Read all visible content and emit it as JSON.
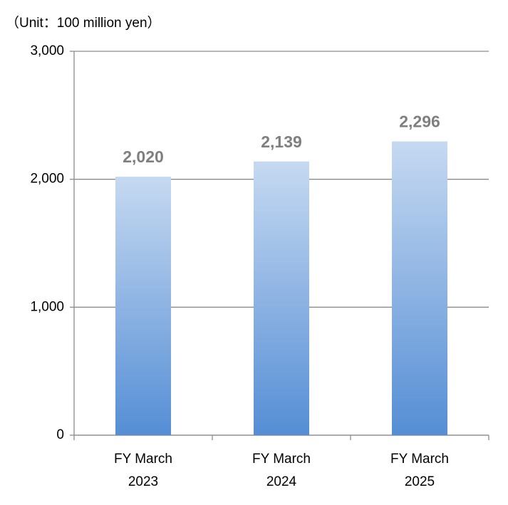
{
  "chart_data": {
    "type": "bar",
    "subtitle": "（Unit：100 million yen）",
    "categories": [
      "FY March 2023",
      "FY March 2024",
      "FY March 2025"
    ],
    "values": [
      2020,
      2139,
      2296
    ],
    "value_labels": [
      "2,020",
      "2,139",
      "2,296"
    ],
    "colors": [
      "#c6d9f1",
      "#558ed5"
    ],
    "ylim": [
      0,
      3000
    ],
    "yticks": [
      0,
      {
        "value": 1000,
        "label": "1,000"
      },
      {
        "value": 2000,
        "label": "2,000"
      },
      {
        "value": 3000,
        "label": "3,000"
      }
    ],
    "grid": true
  }
}
